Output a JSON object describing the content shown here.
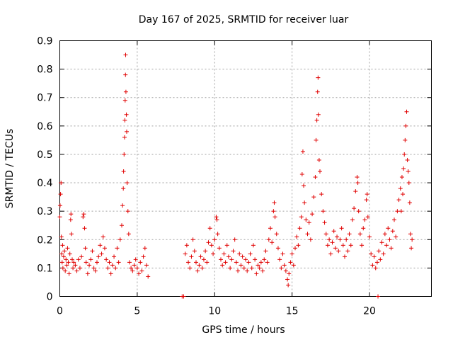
{
  "chart_data": {
    "type": "scatter",
    "title": "Day 167 of 2025, SRMTID for receiver luar",
    "xlabel": "GPS time / hours",
    "ylabel": "SRMTID / TECUs",
    "xlim": [
      0,
      24
    ],
    "ylim": [
      0,
      0.9
    ],
    "xticks": [
      0,
      5,
      10,
      15,
      20
    ],
    "xtick_labels": [
      "0",
      "5",
      "10",
      "15",
      "20"
    ],
    "yticks": [
      0,
      0.1,
      0.2,
      0.3,
      0.4,
      0.5,
      0.6,
      0.7,
      0.8,
      0.9
    ],
    "ytick_labels": [
      "0",
      "0.1",
      "0.2",
      "0.3",
      "0.4",
      "0.5",
      "0.6",
      "0.7",
      "0.8",
      "0.9"
    ],
    "grid": true,
    "marker": "+",
    "color": "#e00000",
    "series": [
      {
        "name": "SRMTID",
        "points": [
          [
            0.0,
            0.28
          ],
          [
            0.02,
            0.32
          ],
          [
            0.05,
            0.36
          ],
          [
            0.08,
            0.4
          ],
          [
            0.1,
            0.21
          ],
          [
            0.12,
            0.15
          ],
          [
            0.15,
            0.12
          ],
          [
            0.18,
            0.18
          ],
          [
            0.2,
            0.1
          ],
          [
            0.25,
            0.14
          ],
          [
            0.3,
            0.16
          ],
          [
            0.35,
            0.09
          ],
          [
            0.4,
            0.13
          ],
          [
            0.45,
            0.11
          ],
          [
            0.5,
            0.17
          ],
          [
            0.55,
            0.12
          ],
          [
            0.6,
            0.08
          ],
          [
            0.65,
            0.15
          ],
          [
            0.7,
            0.27
          ],
          [
            0.72,
            0.29
          ],
          [
            0.75,
            0.22
          ],
          [
            0.8,
            0.13
          ],
          [
            0.85,
            0.1
          ],
          [
            0.9,
            0.12
          ],
          [
            1.0,
            0.11
          ],
          [
            1.1,
            0.09
          ],
          [
            1.2,
            0.13
          ],
          [
            1.3,
            0.1
          ],
          [
            1.4,
            0.14
          ],
          [
            1.5,
            0.28
          ],
          [
            1.55,
            0.29
          ],
          [
            1.6,
            0.24
          ],
          [
            1.65,
            0.17
          ],
          [
            1.7,
            0.12
          ],
          [
            1.8,
            0.08
          ],
          [
            1.9,
            0.11
          ],
          [
            2.0,
            0.13
          ],
          [
            2.1,
            0.16
          ],
          [
            2.2,
            0.1
          ],
          [
            2.3,
            0.09
          ],
          [
            2.4,
            0.12
          ],
          [
            2.5,
            0.14
          ],
          [
            2.6,
            0.18
          ],
          [
            2.7,
            0.15
          ],
          [
            2.8,
            0.21
          ],
          [
            2.9,
            0.17
          ],
          [
            3.0,
            0.13
          ],
          [
            3.1,
            0.1
          ],
          [
            3.2,
            0.12
          ],
          [
            3.3,
            0.08
          ],
          [
            3.4,
            0.11
          ],
          [
            3.5,
            0.14
          ],
          [
            3.6,
            0.1
          ],
          [
            3.7,
            0.17
          ],
          [
            3.8,
            0.12
          ],
          [
            3.9,
            0.2
          ],
          [
            4.0,
            0.25
          ],
          [
            4.05,
            0.32
          ],
          [
            4.1,
            0.38
          ],
          [
            4.12,
            0.44
          ],
          [
            4.15,
            0.5
          ],
          [
            4.18,
            0.56
          ],
          [
            4.2,
            0.62
          ],
          [
            4.22,
            0.69
          ],
          [
            4.24,
            0.78
          ],
          [
            4.25,
            0.85
          ],
          [
            4.27,
            0.72
          ],
          [
            4.3,
            0.64
          ],
          [
            4.32,
            0.58
          ],
          [
            4.35,
            0.4
          ],
          [
            4.4,
            0.3
          ],
          [
            4.45,
            0.22
          ],
          [
            4.5,
            0.12
          ],
          [
            4.6,
            0.1
          ],
          [
            4.7,
            0.09
          ],
          [
            4.8,
            0.11
          ],
          [
            4.9,
            0.13
          ],
          [
            5.0,
            0.1
          ],
          [
            5.1,
            0.08
          ],
          [
            5.2,
            0.12
          ],
          [
            5.3,
            0.09
          ],
          [
            5.4,
            0.14
          ],
          [
            5.5,
            0.17
          ],
          [
            5.6,
            0.11
          ],
          [
            5.7,
            0.07
          ],
          [
            7.9,
            0.0
          ],
          [
            8.0,
            0.0
          ],
          [
            8.1,
            0.15
          ],
          [
            8.2,
            0.18
          ],
          [
            8.3,
            0.12
          ],
          [
            8.4,
            0.1
          ],
          [
            8.5,
            0.14
          ],
          [
            8.6,
            0.2
          ],
          [
            8.7,
            0.16
          ],
          [
            8.8,
            0.12
          ],
          [
            8.9,
            0.09
          ],
          [
            9.0,
            0.11
          ],
          [
            9.1,
            0.14
          ],
          [
            9.2,
            0.1
          ],
          [
            9.3,
            0.13
          ],
          [
            9.4,
            0.16
          ],
          [
            9.5,
            0.12
          ],
          [
            9.6,
            0.19
          ],
          [
            9.7,
            0.24
          ],
          [
            9.8,
            0.18
          ],
          [
            9.9,
            0.15
          ],
          [
            10.0,
            0.2
          ],
          [
            10.1,
            0.28
          ],
          [
            10.15,
            0.27
          ],
          [
            10.2,
            0.22
          ],
          [
            10.3,
            0.17
          ],
          [
            10.4,
            0.13
          ],
          [
            10.5,
            0.11
          ],
          [
            10.6,
            0.15
          ],
          [
            10.7,
            0.12
          ],
          [
            10.8,
            0.18
          ],
          [
            10.9,
            0.14
          ],
          [
            11.0,
            0.1
          ],
          [
            11.1,
            0.13
          ],
          [
            11.2,
            0.16
          ],
          [
            11.3,
            0.2
          ],
          [
            11.4,
            0.12
          ],
          [
            11.5,
            0.09
          ],
          [
            11.6,
            0.15
          ],
          [
            11.7,
            0.11
          ],
          [
            11.8,
            0.14
          ],
          [
            11.9,
            0.1
          ],
          [
            12.0,
            0.13
          ],
          [
            12.1,
            0.09
          ],
          [
            12.2,
            0.12
          ],
          [
            12.3,
            0.15
          ],
          [
            12.4,
            0.1
          ],
          [
            12.5,
            0.18
          ],
          [
            12.6,
            0.13
          ],
          [
            12.7,
            0.08
          ],
          [
            12.8,
            0.11
          ],
          [
            12.9,
            0.1
          ],
          [
            13.0,
            0.12
          ],
          [
            13.1,
            0.09
          ],
          [
            13.2,
            0.13
          ],
          [
            13.3,
            0.16
          ],
          [
            13.4,
            0.12
          ],
          [
            13.5,
            0.2
          ],
          [
            13.6,
            0.24
          ],
          [
            13.7,
            0.19
          ],
          [
            13.8,
            0.3
          ],
          [
            13.85,
            0.33
          ],
          [
            13.9,
            0.28
          ],
          [
            14.0,
            0.22
          ],
          [
            14.1,
            0.17
          ],
          [
            14.2,
            0.13
          ],
          [
            14.3,
            0.1
          ],
          [
            14.4,
            0.15
          ],
          [
            14.5,
            0.11
          ],
          [
            14.6,
            0.09
          ],
          [
            14.7,
            0.06
          ],
          [
            14.75,
            0.04
          ],
          [
            14.8,
            0.08
          ],
          [
            14.9,
            0.12
          ],
          [
            15.0,
            0.15
          ],
          [
            15.1,
            0.11
          ],
          [
            15.2,
            0.17
          ],
          [
            15.3,
            0.21
          ],
          [
            15.4,
            0.18
          ],
          [
            15.5,
            0.24
          ],
          [
            15.6,
            0.28
          ],
          [
            15.65,
            0.43
          ],
          [
            15.7,
            0.51
          ],
          [
            15.75,
            0.39
          ],
          [
            15.8,
            0.33
          ],
          [
            15.9,
            0.27
          ],
          [
            16.0,
            0.22
          ],
          [
            16.1,
            0.26
          ],
          [
            16.2,
            0.2
          ],
          [
            16.3,
            0.29
          ],
          [
            16.4,
            0.35
          ],
          [
            16.5,
            0.42
          ],
          [
            16.55,
            0.55
          ],
          [
            16.6,
            0.62
          ],
          [
            16.65,
            0.72
          ],
          [
            16.68,
            0.77
          ],
          [
            16.7,
            0.64
          ],
          [
            16.75,
            0.48
          ],
          [
            16.8,
            0.44
          ],
          [
            16.9,
            0.36
          ],
          [
            17.0,
            0.3
          ],
          [
            17.1,
            0.26
          ],
          [
            17.2,
            0.22
          ],
          [
            17.3,
            0.18
          ],
          [
            17.4,
            0.2
          ],
          [
            17.5,
            0.15
          ],
          [
            17.6,
            0.19
          ],
          [
            17.7,
            0.23
          ],
          [
            17.8,
            0.17
          ],
          [
            17.9,
            0.21
          ],
          [
            18.0,
            0.16
          ],
          [
            18.1,
            0.2
          ],
          [
            18.2,
            0.24
          ],
          [
            18.3,
            0.18
          ],
          [
            18.4,
            0.14
          ],
          [
            18.5,
            0.2
          ],
          [
            18.6,
            0.16
          ],
          [
            18.7,
            0.22
          ],
          [
            18.8,
            0.18
          ],
          [
            18.9,
            0.27
          ],
          [
            19.0,
            0.31
          ],
          [
            19.1,
            0.37
          ],
          [
            19.2,
            0.42
          ],
          [
            19.25,
            0.4
          ],
          [
            19.3,
            0.3
          ],
          [
            19.4,
            0.22
          ],
          [
            19.5,
            0.18
          ],
          [
            19.6,
            0.24
          ],
          [
            19.7,
            0.27
          ],
          [
            19.8,
            0.34
          ],
          [
            19.85,
            0.36
          ],
          [
            19.9,
            0.28
          ],
          [
            20.0,
            0.21
          ],
          [
            20.1,
            0.15
          ],
          [
            20.2,
            0.11
          ],
          [
            20.3,
            0.14
          ],
          [
            20.4,
            0.1
          ],
          [
            20.5,
            0.12
          ],
          [
            20.55,
            0.0
          ],
          [
            20.6,
            0.16
          ],
          [
            20.7,
            0.13
          ],
          [
            20.8,
            0.19
          ],
          [
            20.9,
            0.15
          ],
          [
            21.0,
            0.22
          ],
          [
            21.1,
            0.18
          ],
          [
            21.2,
            0.24
          ],
          [
            21.3,
            0.2
          ],
          [
            21.4,
            0.17
          ],
          [
            21.5,
            0.23
          ],
          [
            21.6,
            0.27
          ],
          [
            21.7,
            0.21
          ],
          [
            21.8,
            0.3
          ],
          [
            21.9,
            0.34
          ],
          [
            22.0,
            0.38
          ],
          [
            22.05,
            0.3
          ],
          [
            22.1,
            0.42
          ],
          [
            22.15,
            0.36
          ],
          [
            22.2,
            0.45
          ],
          [
            22.25,
            0.5
          ],
          [
            22.3,
            0.55
          ],
          [
            22.35,
            0.6
          ],
          [
            22.4,
            0.65
          ],
          [
            22.45,
            0.48
          ],
          [
            22.5,
            0.44
          ],
          [
            22.55,
            0.4
          ],
          [
            22.6,
            0.33
          ],
          [
            22.65,
            0.22
          ],
          [
            22.7,
            0.17
          ],
          [
            22.75,
            0.2
          ]
        ]
      }
    ]
  }
}
